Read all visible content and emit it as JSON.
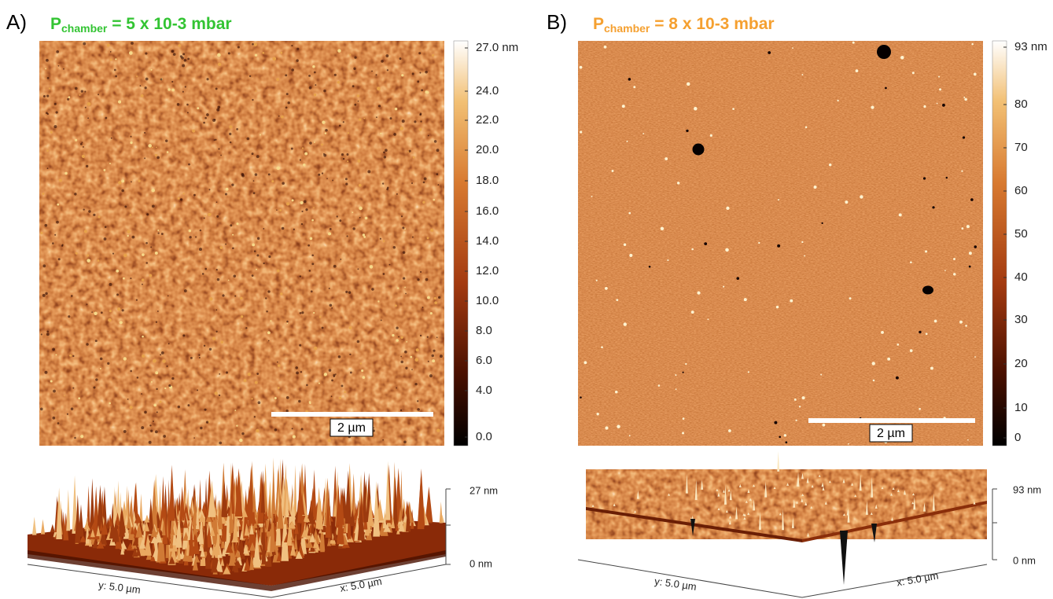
{
  "panels": [
    {
      "label": "A)",
      "title": {
        "main": "P",
        "subscript": "chamber",
        "rest": " = 5 x 10-3 mbar"
      },
      "colorbar_ticks": [
        "27.0 nm",
        "24.0",
        "22.0",
        "20.0",
        "18.0",
        "16.0",
        "14.0",
        "12.0",
        "10.0",
        "8.0",
        "6.0",
        "4.0",
        "0.0"
      ],
      "scale_bar": "2 µm",
      "surface": {
        "z_max": "27 nm",
        "z_min": "0 nm",
        "y_axis": "y: 5.0 µm",
        "x_axis": "x: 5.0 µm"
      }
    },
    {
      "label": "B)",
      "title": {
        "main": "P",
        "subscript": "chamber",
        "rest": " = 8 x 10-3 mbar"
      },
      "colorbar_ticks": [
        "93 nm",
        "80",
        "70",
        "60",
        "50",
        "40",
        "30",
        "20",
        "10",
        "0"
      ],
      "scale_bar": "2 µm",
      "surface": {
        "z_max": "93 nm",
        "z_min": "0 nm",
        "y_axis": "y: 5.0 µm",
        "x_axis": "x: 5.0 µm"
      }
    }
  ]
}
